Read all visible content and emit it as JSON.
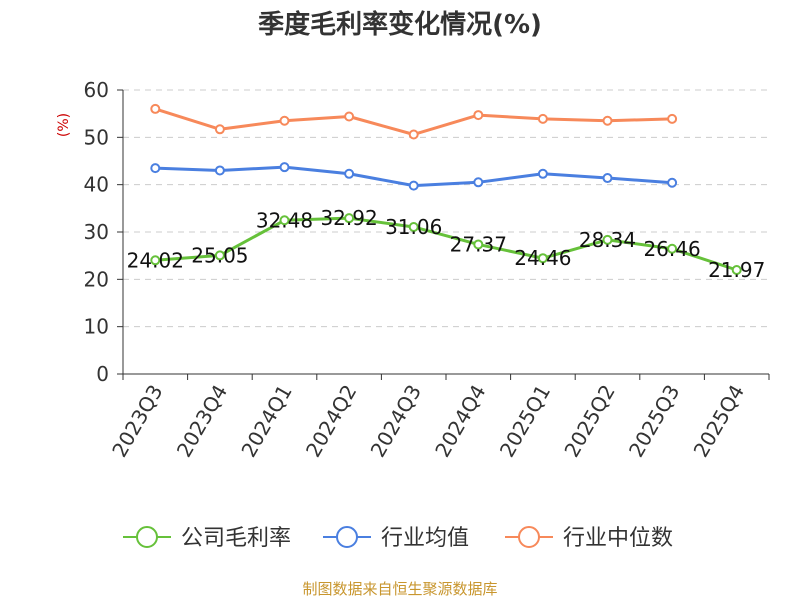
{
  "chart_data": {
    "type": "line",
    "title": "季度毛利率变化情况(%)",
    "xlabel": "",
    "ylabel": "(%)",
    "ylim": [
      0,
      60
    ],
    "yticks": [
      0,
      10,
      20,
      30,
      40,
      50,
      60
    ],
    "grid": true,
    "legend_position": "bottom",
    "categories": [
      "2023Q3",
      "2023Q4",
      "2024Q1",
      "2024Q2",
      "2024Q3",
      "2024Q4",
      "2025Q1",
      "2025Q2",
      "2025Q3",
      "2025Q4"
    ],
    "series": [
      {
        "name": "公司毛利率",
        "color": "#66c13a",
        "show_labels": true,
        "values": [
          24.02,
          25.05,
          32.48,
          32.92,
          31.06,
          27.37,
          24.46,
          28.34,
          26.46,
          21.97
        ]
      },
      {
        "name": "行业均值",
        "color": "#4a7fe0",
        "show_labels": false,
        "values": [
          43.5,
          43.0,
          43.7,
          42.3,
          39.8,
          40.5,
          42.3,
          41.4,
          40.4,
          null
        ]
      },
      {
        "name": "行业中位数",
        "color": "#f7895a",
        "show_labels": false,
        "values": [
          56.0,
          51.7,
          53.5,
          54.4,
          50.6,
          54.7,
          53.9,
          53.5,
          53.9,
          null
        ]
      }
    ],
    "source": "制图数据来自恒生聚源数据库",
    "colors": {
      "ylabel": "#cc0000",
      "source": "#c8962e",
      "axis": "#333333",
      "grid": "#cccccc"
    }
  }
}
